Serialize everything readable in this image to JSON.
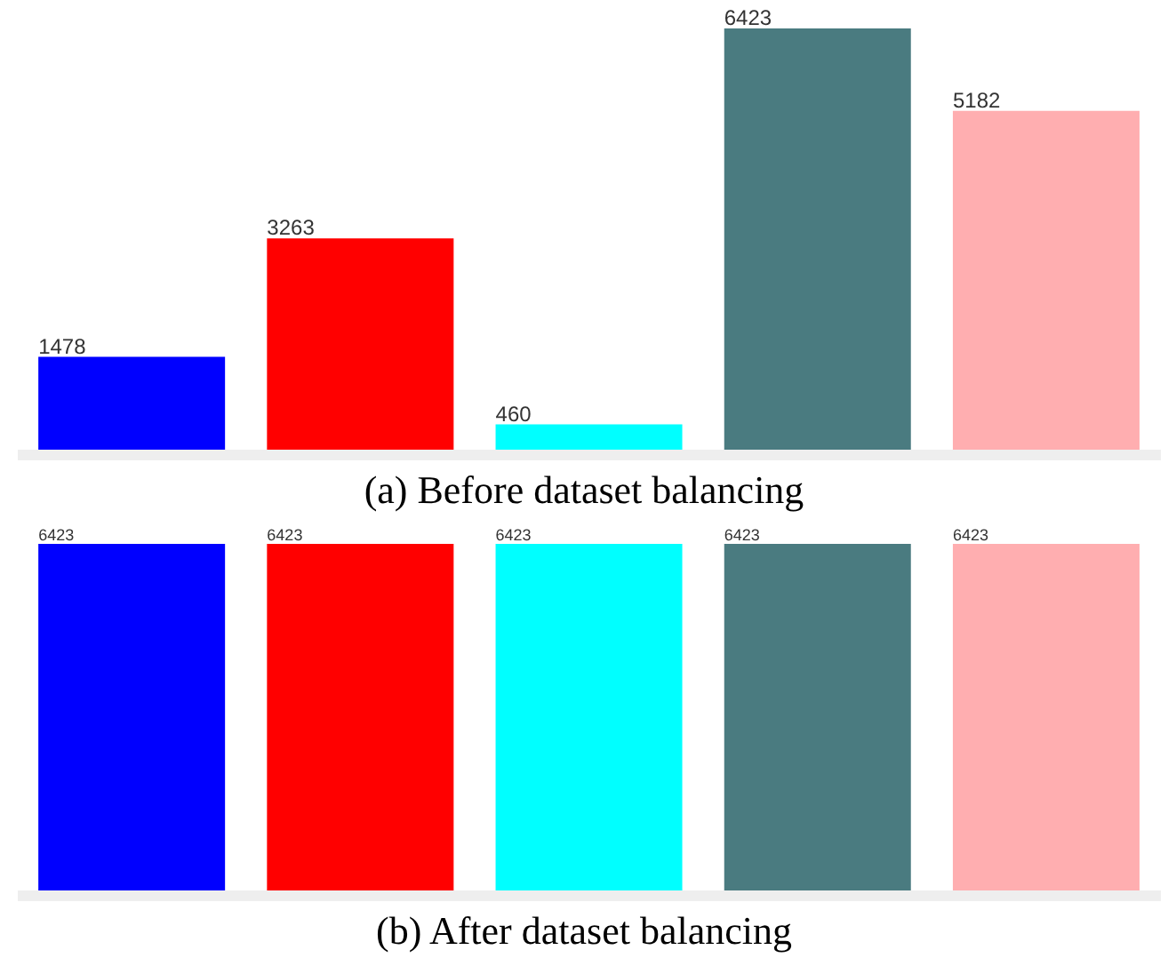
{
  "chart_data": [
    {
      "type": "bar",
      "title": "(a) Before dataset balancing",
      "categories": [
        null,
        null,
        null,
        null,
        null
      ],
      "values": [
        1478,
        3263,
        460,
        6423,
        5182
      ],
      "colors": [
        "#0000ff",
        "#ff0000",
        "#00ffff",
        "#4a7b80",
        "#ffaeb0"
      ],
      "data_labels": true
    },
    {
      "type": "bar",
      "title": "(b) After dataset balancing",
      "categories": [
        null,
        null,
        null,
        null,
        null
      ],
      "values": [
        6423,
        6423,
        6423,
        6423,
        6423
      ],
      "colors": [
        "#0000ff",
        "#ff0000",
        "#00ffff",
        "#4a7b80",
        "#ffaeb0"
      ],
      "data_labels": true
    }
  ]
}
